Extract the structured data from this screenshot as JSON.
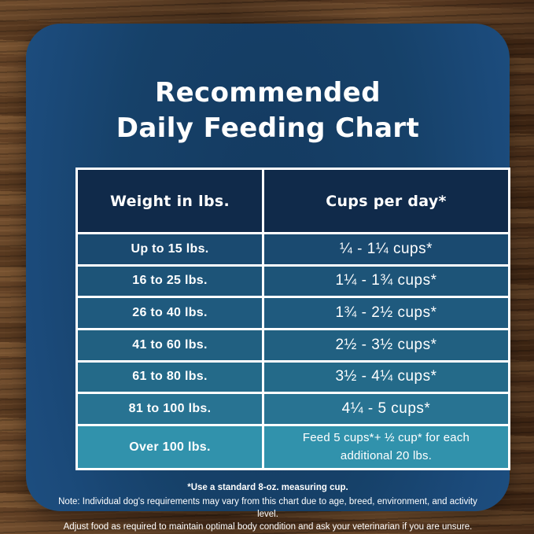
{
  "chart_data": {
    "type": "table",
    "title": "Recommended Daily Feeding Chart",
    "columns": [
      "Weight in lbs.",
      "Cups per day*"
    ],
    "rows": [
      [
        "Up to 15 lbs.",
        "¼ - 1¼ cups*"
      ],
      [
        "16 to 25 lbs.",
        "1¼ - 1¾ cups*"
      ],
      [
        "26 to 40 lbs.",
        "1¾ - 2½ cups*"
      ],
      [
        "41 to 60 lbs.",
        "2½ - 3½ cups*"
      ],
      [
        "61 to 80 lbs.",
        "3½ - 4¼ cups*"
      ],
      [
        "81 to 100 lbs.",
        "4¼ - 5 cups*"
      ],
      [
        "Over 100 lbs.",
        "Feed 5 cups*+ ½ cup* for each additional 20 lbs."
      ]
    ]
  },
  "title": {
    "line1": "Recommended",
    "line2": "Daily Feeding Chart"
  },
  "footnotes": {
    "measuring_cup": "*Use a standard 8-oz. measuring cup.",
    "note_line1": "Note: Individual dog's requirements may vary from this chart due to age, breed, environment, and activity level.",
    "note_line2": "Adjust food as required to maintain optimal body condition and ask your veterinarian if you are unsure."
  },
  "styles": {
    "panel_blue": "#164169",
    "header_cell_bg": "#102a4a",
    "table_border": "#ffffff",
    "text_color": "#ffffff",
    "row_colors": [
      "#1a4a70",
      "#1d5478",
      "#1f5a7e",
      "#216081",
      "#246a89",
      "#287392",
      "#3192ac"
    ]
  }
}
